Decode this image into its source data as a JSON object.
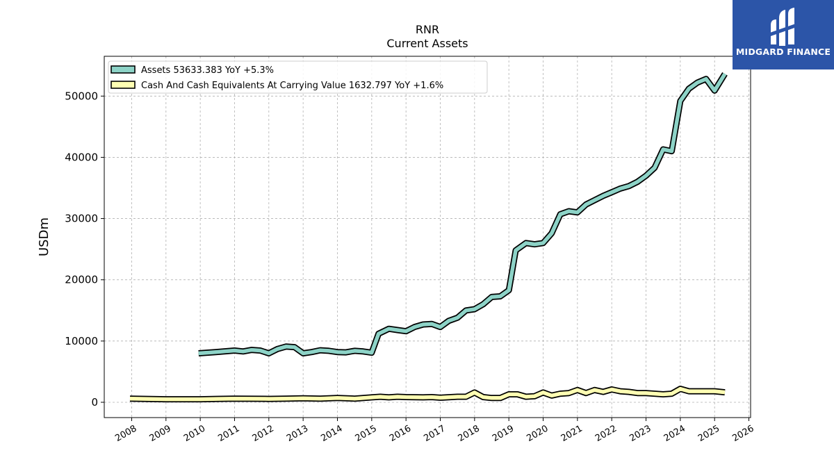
{
  "chart_data": {
    "type": "line",
    "title": "RNR",
    "subtitle": "Current  Assets",
    "ylabel": "USDm",
    "xlabel": "",
    "xlim": [
      2007.2,
      2026.05
    ],
    "ylim": [
      -2500,
      56500
    ],
    "x_ticks": [
      "2008",
      "2009",
      "2010",
      "2011",
      "2012",
      "2013",
      "2014",
      "2015",
      "2016",
      "2017",
      "2018",
      "2019",
      "2020",
      "2021",
      "2022",
      "2023",
      "2024",
      "2025",
      "2026"
    ],
    "y_ticks": [
      "0",
      "10000",
      "20000",
      "30000",
      "40000",
      "50000"
    ],
    "grid": true,
    "legend_position": "top-left",
    "series": [
      {
        "name": "Assets  53633.383 YoY +5.3%",
        "color": "#8dd3c7",
        "x": [
          2009.95,
          2010.45,
          2011.0,
          2011.25,
          2011.5,
          2011.75,
          2012.0,
          2012.25,
          2012.5,
          2012.75,
          2013.0,
          2013.25,
          2013.5,
          2013.75,
          2014.0,
          2014.25,
          2014.5,
          2014.75,
          2015.0,
          2015.2,
          2015.5,
          2015.75,
          2016.0,
          2016.25,
          2016.5,
          2016.75,
          2017.0,
          2017.25,
          2017.5,
          2017.75,
          2018.0,
          2018.25,
          2018.5,
          2018.75,
          2019.0,
          2019.2,
          2019.5,
          2019.75,
          2020.0,
          2020.25,
          2020.5,
          2020.75,
          2021.0,
          2021.25,
          2021.5,
          2021.75,
          2022.0,
          2022.25,
          2022.5,
          2022.75,
          2023.0,
          2023.25,
          2023.5,
          2023.75,
          2024.0,
          2024.25,
          2024.5,
          2024.75,
          2025.0,
          2025.3
        ],
        "values": [
          8000,
          8200,
          8450,
          8300,
          8550,
          8450,
          8000,
          8700,
          9100,
          9000,
          8000,
          8200,
          8500,
          8400,
          8200,
          8150,
          8400,
          8300,
          8100,
          11200,
          12000,
          11800,
          11600,
          12300,
          12700,
          12800,
          12300,
          13300,
          13800,
          15000,
          15200,
          16000,
          17200,
          17300,
          18300,
          24800,
          26000,
          25800,
          26000,
          27600,
          30700,
          31200,
          31000,
          32300,
          33000,
          33700,
          34300,
          34900,
          35300,
          36000,
          37000,
          38300,
          41300,
          41000,
          49200,
          51200,
          52200,
          52800,
          50900,
          53633
        ]
      },
      {
        "name": "Cash And Cash Equivalents At Carrying Value  1632.797 YoY +1.6%",
        "color": "#ffffb3",
        "x": [
          2007.95,
          2009.0,
          2010.0,
          2010.5,
          2011.0,
          2012.0,
          2012.5,
          2013.0,
          2013.5,
          2014.0,
          2014.5,
          2015.0,
          2015.25,
          2015.5,
          2015.75,
          2016.0,
          2016.5,
          2016.75,
          2017.0,
          2017.5,
          2017.75,
          2018.0,
          2018.25,
          2018.5,
          2018.75,
          2019.0,
          2019.25,
          2019.5,
          2019.75,
          2020.0,
          2020.25,
          2020.5,
          2020.75,
          2021.0,
          2021.25,
          2021.5,
          2021.75,
          2022.0,
          2022.25,
          2022.5,
          2022.75,
          2023.0,
          2023.25,
          2023.5,
          2023.75,
          2024.0,
          2024.25,
          2024.5,
          2024.75,
          2025.0,
          2025.3
        ],
        "values": [
          600,
          500,
          500,
          550,
          600,
          550,
          600,
          650,
          600,
          700,
          600,
          800,
          900,
          800,
          900,
          850,
          800,
          850,
          750,
          900,
          900,
          1600,
          850,
          700,
          700,
          1300,
          1300,
          900,
          1000,
          1600,
          1100,
          1400,
          1500,
          2000,
          1500,
          2000,
          1700,
          2100,
          1800,
          1700,
          1500,
          1500,
          1400,
          1300,
          1400,
          2200,
          1800,
          1800,
          1800,
          1800,
          1633
        ]
      }
    ]
  },
  "logo": {
    "text": "MIDGARD FINANCE"
  }
}
